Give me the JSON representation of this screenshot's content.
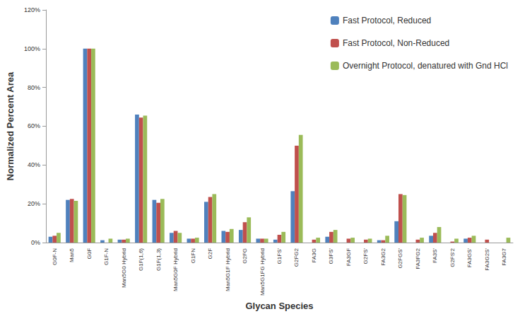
{
  "chart_data": {
    "type": "bar",
    "x_label": "Glycan Species",
    "y_label": "Normalized Percent Area",
    "categories": [
      "G0F-N",
      "Man5",
      "G0F",
      "G1F-N",
      "Man5G0 Hybrid",
      "G1F(1,6)",
      "G1F(1,3)",
      "Man5G0F Hybrid",
      "G1FN",
      "G2F",
      "Man5G1F Hybrid",
      "G2FG",
      "Man5G1FG Hybrid",
      "G1FS'",
      "G2FG2",
      "FA3G",
      "G3FS'",
      "FA3GF",
      "G2FS'",
      "FA3G2",
      "G2FGS'",
      "FA3FG2",
      "FA3S'",
      "G2FS'2",
      "FA3GS'",
      "FA3G2S'",
      "FA3G7"
    ],
    "series": [
      {
        "name": "Fast Protocol, Reduced",
        "color": "#4F81BD",
        "values": [
          3,
          22,
          100,
          1.2,
          1.5,
          66,
          22,
          5,
          2,
          21,
          6,
          6.5,
          2,
          1.5,
          26.5,
          0,
          3,
          0,
          0,
          1.2,
          11,
          0,
          3.5,
          0,
          2,
          0,
          0
        ]
      },
      {
        "name": "Fast Protocol, Non-Reduced",
        "color": "#C0504D",
        "values": [
          3.5,
          22.5,
          100,
          0,
          1.5,
          64.5,
          20.5,
          6,
          2,
          23.5,
          5.5,
          10.5,
          2,
          4,
          50,
          1.5,
          5.5,
          2,
          1.5,
          1.2,
          25,
          1.5,
          5,
          0.5,
          2.5,
          1.5,
          0
        ]
      },
      {
        "name": "Overnight Protocol, denatured with Gnd HCl",
        "color": "#9BBB59",
        "values": [
          5,
          21.5,
          100,
          2,
          2,
          65.5,
          22.5,
          5,
          2.5,
          25,
          7,
          13,
          2,
          5.5,
          55.5,
          2.5,
          6.5,
          2.5,
          2,
          3.5,
          24.5,
          2.5,
          8,
          2,
          3.5,
          0,
          2.5
        ]
      }
    ],
    "ylim": [
      0,
      120
    ],
    "yticks": [
      {
        "value": 0,
        "label": "0%"
      },
      {
        "value": 20,
        "label": "20%"
      },
      {
        "value": 40,
        "label": "40%"
      },
      {
        "value": 60,
        "label": "60%"
      },
      {
        "value": 80,
        "label": "80%"
      },
      {
        "value": 100,
        "label": "100%"
      },
      {
        "value": 120,
        "label": "120%"
      }
    ],
    "grid": false,
    "legend": "upper right"
  }
}
